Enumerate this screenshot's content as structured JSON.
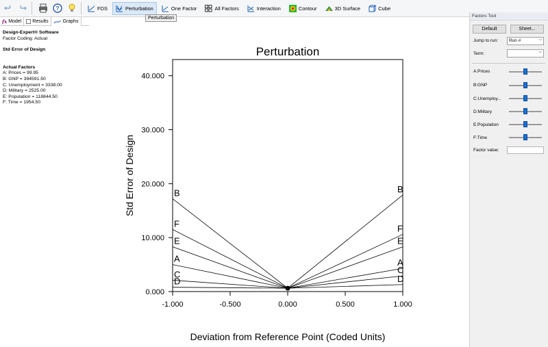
{
  "toolbar": {
    "buttons": [
      {
        "label": "FDS"
      },
      {
        "label": "Perturbation"
      },
      {
        "label": "One Factor"
      },
      {
        "label": "All Factors"
      },
      {
        "label": "Interaction"
      },
      {
        "label": "Contour"
      },
      {
        "label": "3D Surface"
      },
      {
        "label": "Cube"
      }
    ],
    "tooltip": "Perturbation"
  },
  "tabs": {
    "model": "Model",
    "results": "Results",
    "graphs": "Graphs",
    "fx": "fx"
  },
  "info": {
    "software": "Design-Expert® Software",
    "coding": "Factor Coding: Actual",
    "response": "Std Error of Design",
    "factors_heading": "Actual Factors",
    "factors": [
      "A: Prices = 99.95",
      "B: GNP = 394591.50",
      "C: Unemployment = 3338.00",
      "D: Military = 2525.00",
      "E: Population = 118844.50",
      "F: Time = 1954.50"
    ]
  },
  "chart_data": {
    "type": "line",
    "title": "Perturbation",
    "xlabel": "Deviation from Reference Point (Coded Units)",
    "ylabel": "Std Error of Design",
    "xlim": [
      -1,
      1
    ],
    "ylim": [
      0,
      43
    ],
    "xticks": [
      "-1.000",
      "-0.500",
      "0.000",
      "0.500",
      "1.000"
    ],
    "yticks": [
      "0.000",
      "10.000",
      "20.000",
      "30.000",
      "40.000"
    ],
    "x": [
      -1,
      0,
      1
    ],
    "series": [
      {
        "name": "B",
        "values": [
          17.2,
          0.62,
          17.9
        ]
      },
      {
        "name": "F",
        "values": [
          11.5,
          0.62,
          10.6
        ]
      },
      {
        "name": "E",
        "values": [
          8.3,
          0.62,
          8.3
        ]
      },
      {
        "name": "A",
        "values": [
          5.0,
          0.62,
          4.3
        ]
      },
      {
        "name": "C",
        "values": [
          2.1,
          0.62,
          2.9
        ]
      },
      {
        "name": "D",
        "values": [
          0.8,
          0.62,
          1.3
        ]
      }
    ],
    "reference_point": {
      "x": 0,
      "y": 0.62
    }
  },
  "panel": {
    "title": "Factors Tool",
    "default_btn": "Default",
    "sheet_btn": "Sheet...",
    "jump_label": "Jump to run:",
    "jump_value": "Run #",
    "term_label": "Term:",
    "term_value": "",
    "factors": [
      {
        "label": "A:Prices",
        "level": 0.5
      },
      {
        "label": "B:GNP",
        "level": 0.5
      },
      {
        "label": "C:Unemploy...",
        "level": 0.5
      },
      {
        "label": "D:Military",
        "level": 0.5
      },
      {
        "label": "E:Population",
        "level": 0.5
      },
      {
        "label": "F:Time",
        "level": 0.5
      }
    ],
    "factor_value_label": "Factor value:"
  }
}
